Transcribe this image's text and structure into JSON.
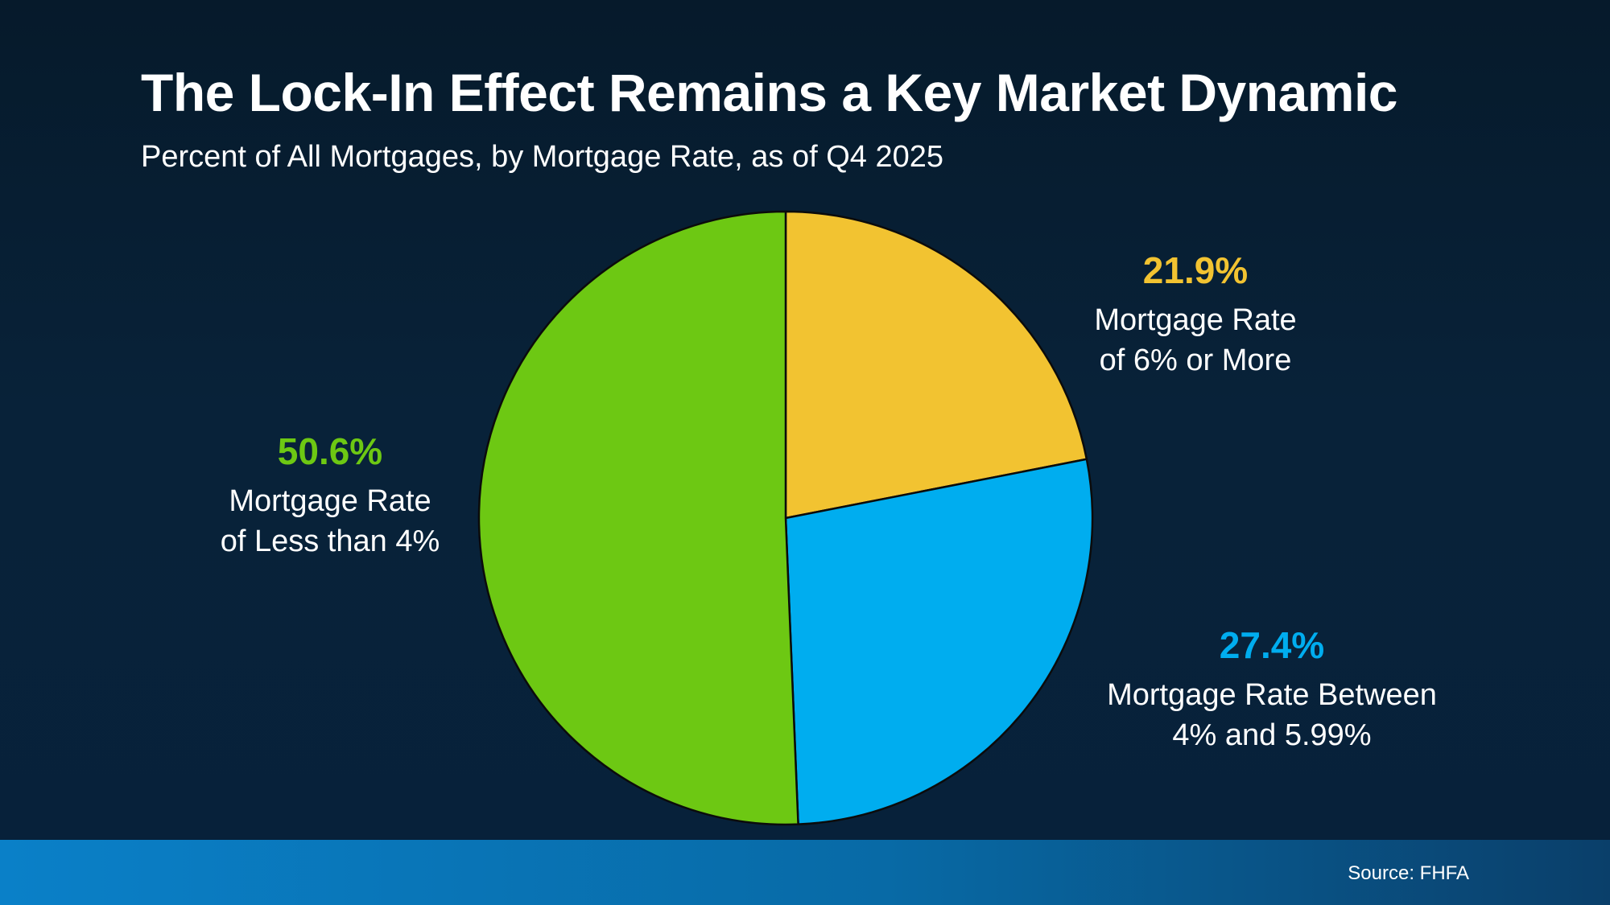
{
  "header": {
    "title": "The Lock-In Effect Remains a Key Market Dynamic",
    "subtitle": "Percent of All Mortgages, by Mortgage Rate, as of Q4 2025"
  },
  "chart_data": {
    "type": "pie",
    "title": "The Lock-In Effect Remains a Key Market Dynamic",
    "subtitle": "Percent of All Mortgages, by Mortgage Rate, as of Q4 2025",
    "slices": [
      {
        "label": "Mortgage Rate of 6% or More",
        "value": 21.9,
        "value_label": "21.9%",
        "desc_line1": "Mortgage Rate",
        "desc_line2": "of 6% or More",
        "color": "#f2c331"
      },
      {
        "label": "Mortgage Rate Between 4% and 5.99%",
        "value": 27.4,
        "value_label": "27.4%",
        "desc_line1": "Mortgage Rate Between",
        "desc_line2": "4% and 5.99%",
        "color": "#00adef"
      },
      {
        "label": "Mortgage Rate of Less than 4%",
        "value": 50.6,
        "value_label": "50.6%",
        "desc_line1": "Mortgage Rate",
        "desc_line2": "of Less than 4%",
        "color": "#6dc813"
      }
    ],
    "start_angle": "12 o'clock",
    "direction": "clockwise"
  },
  "footer": {
    "source": "Source: FHFA"
  }
}
